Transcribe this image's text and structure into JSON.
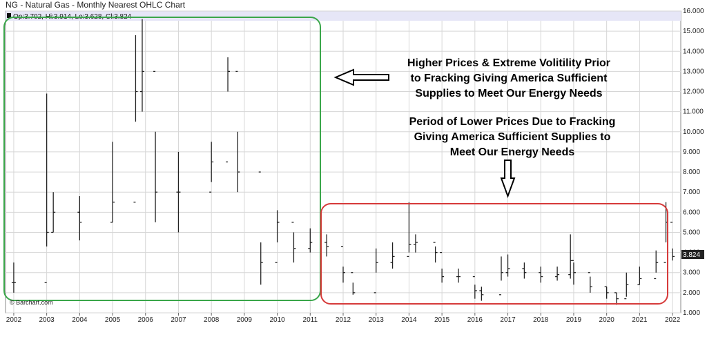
{
  "chart_data": {
    "type": "ohlc",
    "title": "NG - Natural Gas - Monthly Nearest OHLC Chart",
    "info_line": "Op:3.702, Hi:3.914, Lo:3.628, Cl:3.824",
    "last_price_label": "3.824",
    "watermark": "© Barchart.com",
    "ylim": [
      1.0,
      16.0
    ],
    "y_ticks": [
      "1.000",
      "2.000",
      "3.000",
      "4.000",
      "5.000",
      "6.000",
      "7.000",
      "8.000",
      "9.000",
      "10.000",
      "11.000",
      "12.000",
      "13.000",
      "14.000",
      "15.000",
      "16.000"
    ],
    "x_range": [
      2001.75,
      2022.25
    ],
    "x_ticks": [
      "2002",
      "2003",
      "2004",
      "2005",
      "2006",
      "2007",
      "2008",
      "2009",
      "2010",
      "2011",
      "2012",
      "2013",
      "2014",
      "2015",
      "2016",
      "2017",
      "2018",
      "2019",
      "2020",
      "2021",
      "2022"
    ],
    "grid": true,
    "x": [
      2002.0,
      2003.0,
      2003.2,
      2004.0,
      2005.0,
      2005.7,
      2005.9,
      2006.3,
      2007.0,
      2008.0,
      2008.5,
      2008.8,
      2009.5,
      2010.0,
      2010.5,
      2011.0,
      2011.5,
      2012.0,
      2012.3,
      2013.0,
      2013.5,
      2014.0,
      2014.2,
      2014.8,
      2015.0,
      2015.5,
      2016.0,
      2016.2,
      2016.8,
      2017.0,
      2017.5,
      2018.0,
      2018.5,
      2018.9,
      2019.0,
      2019.5,
      2020.0,
      2020.3,
      2020.6,
      2021.0,
      2021.5,
      2021.8,
      2022.0
    ],
    "close": [
      2.5,
      5.0,
      6.0,
      5.5,
      6.5,
      12.0,
      13.0,
      7.0,
      7.0,
      8.5,
      13.0,
      8.0,
      3.5,
      5.5,
      4.2,
      4.5,
      4.3,
      3.0,
      2.0,
      3.5,
      3.8,
      4.4,
      4.5,
      4.0,
      2.8,
      2.8,
      2.1,
      1.9,
      3.0,
      3.2,
      3.0,
      2.8,
      2.9,
      3.6,
      3.0,
      2.3,
      2.0,
      1.7,
      2.4,
      2.7,
      3.5,
      5.5,
      3.8
    ],
    "high": [
      3.5,
      11.9,
      7.0,
      6.8,
      9.5,
      14.8,
      15.6,
      10.0,
      9.0,
      9.5,
      13.7,
      10.0,
      4.5,
      6.1,
      5.0,
      5.2,
      4.9,
      3.3,
      2.5,
      4.2,
      4.5,
      6.5,
      4.9,
      4.3,
      3.2,
      3.2,
      2.4,
      2.3,
      3.8,
      3.9,
      3.5,
      3.3,
      3.3,
      4.9,
      3.5,
      2.8,
      2.3,
      2.0,
      3.0,
      3.3,
      4.1,
      6.5,
      4.2
    ],
    "low": [
      2.0,
      4.3,
      5.0,
      4.6,
      5.5,
      10.5,
      11.0,
      5.5,
      5.0,
      7.5,
      12.0,
      7.0,
      2.4,
      4.5,
      3.5,
      4.0,
      3.8,
      2.5,
      1.9,
      3.0,
      3.2,
      4.0,
      4.0,
      3.5,
      2.5,
      2.5,
      1.7,
      1.6,
      2.6,
      2.8,
      2.7,
      2.5,
      2.6,
      2.7,
      2.4,
      2.0,
      1.7,
      1.4,
      1.8,
      2.4,
      3.0,
      4.5,
      3.6
    ],
    "annotations": [
      {
        "lines": [
          "Higher Prices & Extreme Volitility Prior",
          "to Fracking Giving America Sufficient",
          "Supplies to Meet Our Energy Needs"
        ]
      },
      {
        "lines": [
          "Period of Lower Prices Due to Fracking",
          "Giving America Sufficient Supplies to",
          "Meet Our Energy Needs"
        ]
      }
    ],
    "colors": {
      "bars": "#222222",
      "grid": "#d6d6d6",
      "info_band": "#e6e6f7",
      "green_box": "#3aa64a",
      "red_box": "#d63a3a",
      "last_price_bg": "#222222"
    }
  }
}
